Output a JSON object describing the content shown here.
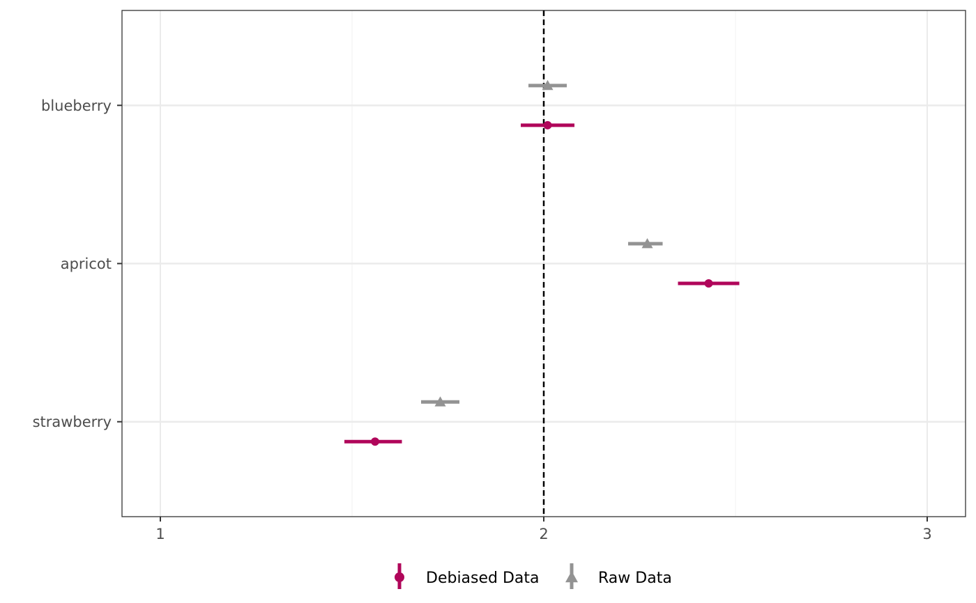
{
  "chart_data": {
    "type": "scatter",
    "subtype": "forest-plot-point-range",
    "title": "",
    "xlabel": "",
    "ylabel": "",
    "xlim": [
      0.9,
      3.1
    ],
    "x_ticks": [
      1,
      2,
      3
    ],
    "x_tick_labels": [
      "1",
      "2",
      "3"
    ],
    "categories": [
      "blueberry",
      "apricot",
      "strawberry"
    ],
    "reference_line": {
      "x": 2,
      "style": "dashed",
      "color": "#000000"
    },
    "grid": true,
    "legend_position": "bottom",
    "series": [
      {
        "name": "Debiased Data",
        "color": "#b0065a",
        "marker": "circle",
        "points": [
          {
            "category": "blueberry",
            "estimate": 2.01,
            "lower": 1.94,
            "upper": 2.08
          },
          {
            "category": "apricot",
            "estimate": 2.43,
            "lower": 2.35,
            "upper": 2.51
          },
          {
            "category": "strawberry",
            "estimate": 1.56,
            "lower": 1.48,
            "upper": 1.63
          }
        ]
      },
      {
        "name": "Raw Data",
        "color": "#939393",
        "marker": "triangle",
        "points": [
          {
            "category": "blueberry",
            "estimate": 2.01,
            "lower": 1.96,
            "upper": 2.06
          },
          {
            "category": "apricot",
            "estimate": 2.27,
            "lower": 2.22,
            "upper": 2.31
          },
          {
            "category": "strawberry",
            "estimate": 1.73,
            "lower": 1.68,
            "upper": 1.78
          }
        ]
      }
    ]
  }
}
